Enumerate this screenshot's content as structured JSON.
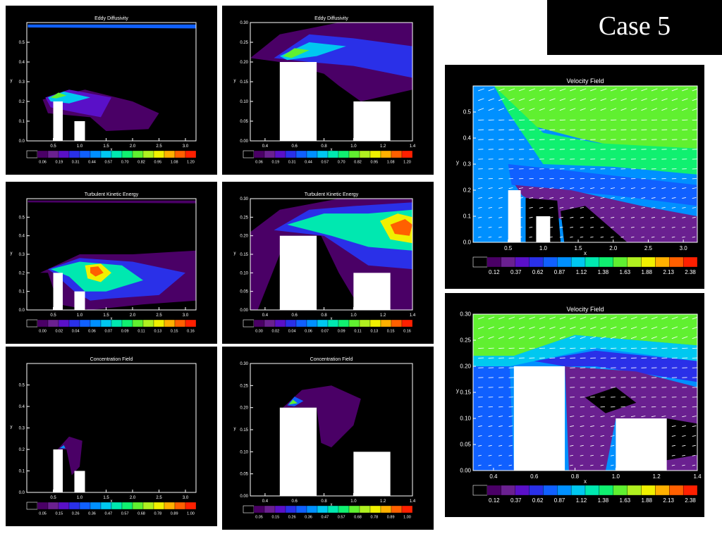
{
  "case_title": "Case 5",
  "colors": {
    "background": "#000000",
    "page": "#ffffff",
    "building": "#ffffff",
    "palette": [
      "#4a0066",
      "#6a2090",
      "#5a10c8",
      "#2a30e8",
      "#1060ff",
      "#0090ff",
      "#00c8f0",
      "#00e8b0",
      "#10f070",
      "#60f030",
      "#b0f020",
      "#f0f000",
      "#ffb000",
      "#ff6000",
      "#ff2000"
    ]
  },
  "chart_data": [
    {
      "type": "heatmap",
      "title": "Eddy Diffusivity",
      "xlabel": "x",
      "ylabel": "y",
      "xlim": [
        0,
        3.2
      ],
      "ylim": [
        0,
        0.6
      ],
      "xticks": [
        "0.5",
        "1.0",
        "1.5",
        "2.0",
        "2.5",
        "3.0"
      ],
      "yticks": [
        "0.0",
        "0.1",
        "0.2",
        "0.3",
        "0.4",
        "0.5"
      ],
      "colorbar_labels": [
        "0.06",
        "0.19",
        "0.31",
        "0.44",
        "0.57",
        "0.70",
        "0.82",
        "0.95",
        "1.08",
        "1.20"
      ]
    },
    {
      "type": "heatmap",
      "title": "Eddy Diffusivity",
      "xlabel": "x",
      "ylabel": "y",
      "xlim": [
        0.3,
        1.4
      ],
      "ylim": [
        0,
        0.3
      ],
      "xticks": [
        "0.4",
        "0.6",
        "0.8",
        "1.0",
        "1.2",
        "1.4"
      ],
      "yticks": [
        "0.00",
        "0.05",
        "0.10",
        "0.15",
        "0.20",
        "0.25",
        "0.30"
      ],
      "colorbar_labels": [
        "0.06",
        "0.19",
        "0.31",
        "0.44",
        "0.57",
        "0.70",
        "0.82",
        "0.95",
        "1.08",
        "1.20"
      ]
    },
    {
      "type": "heatmap",
      "title": "Turbulent Kinetic Energy",
      "xlabel": "x",
      "ylabel": "y",
      "xlim": [
        0,
        3.2
      ],
      "ylim": [
        0,
        0.6
      ],
      "xticks": [
        "0.5",
        "1.0",
        "1.5",
        "2.0",
        "2.5",
        "3.0"
      ],
      "yticks": [
        "0.0",
        "0.1",
        "0.2",
        "0.3",
        "0.4",
        "0.5"
      ],
      "colorbar_labels": [
        "0.00",
        "0.02",
        "0.04",
        "0.06",
        "0.07",
        "0.09",
        "0.11",
        "0.13",
        "0.15",
        "0.16"
      ]
    },
    {
      "type": "heatmap",
      "title": "Turbulent Kinetic Energy",
      "xlabel": "x",
      "ylabel": "y",
      "xlim": [
        0.3,
        1.4
      ],
      "ylim": [
        0,
        0.3
      ],
      "xticks": [
        "0.4",
        "0.6",
        "0.8",
        "1.0",
        "1.2",
        "1.4"
      ],
      "yticks": [
        "0.00",
        "0.05",
        "0.10",
        "0.15",
        "0.20",
        "0.25",
        "0.30"
      ],
      "colorbar_labels": [
        "0.00",
        "0.02",
        "0.04",
        "0.06",
        "0.07",
        "0.09",
        "0.11",
        "0.13",
        "0.15",
        "0.16"
      ]
    },
    {
      "type": "heatmap",
      "title": "Concentration Field",
      "xlabel": "x",
      "ylabel": "y",
      "xlim": [
        0,
        3.2
      ],
      "ylim": [
        0,
        0.6
      ],
      "xticks": [
        "0.5",
        "1.0",
        "1.5",
        "2.0",
        "2.5",
        "3.0"
      ],
      "yticks": [
        "0.0",
        "0.1",
        "0.2",
        "0.3",
        "0.4",
        "0.5"
      ],
      "colorbar_labels": [
        "0.05",
        "0.15",
        "0.26",
        "0.36",
        "0.47",
        "0.57",
        "0.68",
        "0.78",
        "0.89",
        "1.00"
      ]
    },
    {
      "type": "heatmap",
      "title": "Concentration Field",
      "xlabel": "x",
      "ylabel": "y",
      "xlim": [
        0.3,
        1.4
      ],
      "ylim": [
        0,
        0.3
      ],
      "xticks": [
        "0.4",
        "0.6",
        "0.8",
        "1.0",
        "1.2",
        "1.4"
      ],
      "yticks": [
        "0.00",
        "0.05",
        "0.10",
        "0.15",
        "0.20",
        "0.25",
        "0.30"
      ],
      "colorbar_labels": [
        "0.05",
        "0.15",
        "0.26",
        "0.36",
        "0.47",
        "0.57",
        "0.68",
        "0.78",
        "0.89",
        "1.00"
      ]
    },
    {
      "type": "heatmap",
      "title": "Velocity Field",
      "xlabel": "x",
      "ylabel": "y",
      "xlim": [
        0,
        3.2
      ],
      "ylim": [
        0,
        0.6
      ],
      "xticks": [
        "0.5",
        "1.0",
        "1.5",
        "2.0",
        "2.5",
        "3.0"
      ],
      "yticks": [
        "0.0",
        "0.1",
        "0.2",
        "0.3",
        "0.4",
        "0.5"
      ],
      "colorbar_labels": [
        "0.12",
        "0.37",
        "0.62",
        "0.87",
        "1.12",
        "1.38",
        "1.63",
        "1.88",
        "2.13",
        "2.38"
      ]
    },
    {
      "type": "heatmap",
      "title": "Velocity Field",
      "xlabel": "x",
      "ylabel": "y",
      "xlim": [
        0.3,
        1.4
      ],
      "ylim": [
        0,
        0.3
      ],
      "xticks": [
        "0.4",
        "0.6",
        "0.8",
        "1.0",
        "1.2",
        "1.4"
      ],
      "yticks": [
        "0.00",
        "0.05",
        "0.10",
        "0.15",
        "0.20",
        "0.25",
        "0.30"
      ],
      "colorbar_labels": [
        "0.12",
        "0.37",
        "0.62",
        "0.87",
        "1.12",
        "1.38",
        "1.63",
        "1.88",
        "2.13",
        "2.38"
      ]
    }
  ]
}
